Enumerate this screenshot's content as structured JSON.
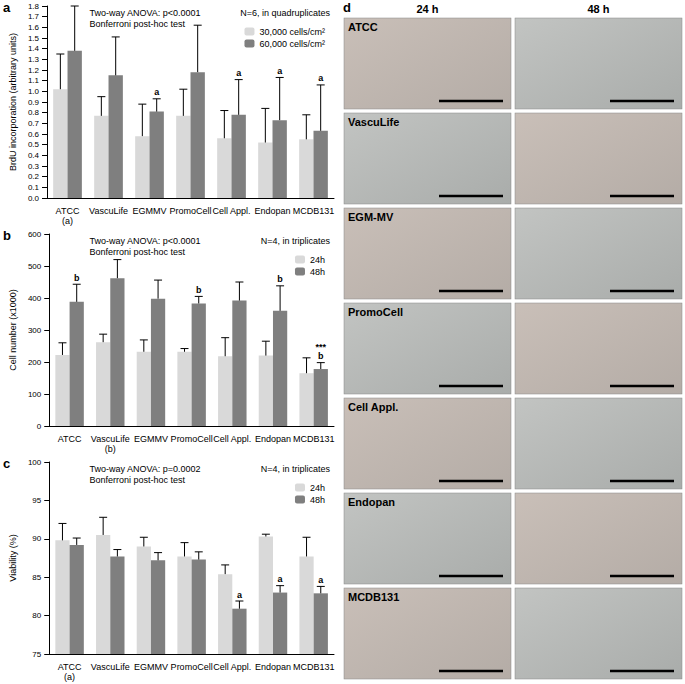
{
  "chart_data": [
    {
      "type": "bar",
      "title": "a",
      "notes": [
        "Two-way ANOVA: p<0.0001",
        "Bonferroni post-hoc test"
      ],
      "sample_note": "N=6, in quadruplicates",
      "y_label": "BrdU incorporation (arbitrary units)",
      "categories": [
        "ATCC\n(a)",
        "VascuLife",
        "EGMMV",
        "PromoCell",
        "Cell Appl.",
        "Endopan",
        "MCDB131"
      ],
      "series": [
        {
          "name": "30,000 cells/cm²",
          "color": "#d9d9d9",
          "values": [
            1.02,
            0.77,
            0.58,
            0.77,
            0.56,
            0.52,
            0.55
          ],
          "errors": [
            0.33,
            0.18,
            0.3,
            0.25,
            0.26,
            0.32,
            0.23
          ]
        },
        {
          "name": "60,000 cells/cm²",
          "color": "#7f7f7f",
          "values": [
            1.38,
            1.15,
            0.81,
            1.18,
            0.78,
            0.73,
            0.63
          ],
          "errors": [
            0.42,
            0.36,
            0.12,
            0.44,
            0.33,
            0.4,
            0.43
          ],
          "annotations": [
            null,
            null,
            "a",
            null,
            "a",
            "a",
            "a"
          ]
        }
      ],
      "ylim": [
        0,
        1.8
      ],
      "yticks": [
        {
          "value": 0,
          "label": "0.0"
        },
        0.1,
        0.2,
        0.3,
        0.4,
        0.5,
        0.6,
        0.7,
        0.8,
        0.9,
        {
          "value": 1,
          "label": "1.0"
        },
        1.1,
        1.2,
        1.3,
        1.4,
        1.5,
        1.6,
        1.7,
        1.8
      ],
      "grid": false,
      "legend": "top-right"
    },
    {
      "type": "bar",
      "title": "b",
      "notes": [
        "Two-way ANOVA: p<0.0001",
        "Bonferroni post-hoc test"
      ],
      "sample_note": "N=4, in triplicates",
      "y_label": "Cell number (x1000)",
      "categories": [
        "ATCC",
        "VascuLife\n(b)",
        "EGMMV",
        "PromoCell",
        "Cell Appl.",
        "Endopan",
        "MCDB131"
      ],
      "series": [
        {
          "name": "24h",
          "color": "#d9d9d9",
          "values": [
            222,
            262,
            232,
            232,
            218,
            220,
            165
          ],
          "errors": [
            38,
            25,
            37,
            10,
            58,
            45,
            48
          ]
        },
        {
          "name": "48h",
          "color": "#7f7f7f",
          "values": [
            388,
            462,
            398,
            383,
            392,
            360,
            178
          ],
          "errors": [
            55,
            58,
            58,
            22,
            58,
            78,
            20
          ],
          "annotations": [
            "b",
            null,
            null,
            "b",
            null,
            "b",
            "***\nb"
          ]
        }
      ],
      "ylim": [
        0,
        600
      ],
      "yticks": [
        0,
        100,
        200,
        300,
        400,
        500,
        600
      ],
      "grid": false,
      "legend": "top-right"
    },
    {
      "type": "bar",
      "title": "c",
      "notes": [
        "Two-way ANOVA: p=0.0002",
        "Bonferroni post-hoc test"
      ],
      "sample_note": "N=4, in triplicates",
      "y_label": "Viability (%)",
      "categories": [
        "ATCC\n(a)",
        "VascuLife",
        "EGMMV",
        "PromoCell",
        "Cell Appl.",
        "Endopan",
        "MCDB131"
      ],
      "series": [
        {
          "name": "24h",
          "color": "#d9d9d9",
          "values": [
            89.8,
            90.5,
            89.0,
            87.7,
            85.4,
            90.3,
            87.7
          ],
          "errors": [
            2.2,
            2.3,
            1.2,
            1.8,
            1.2,
            0.3,
            2.5
          ]
        },
        {
          "name": "48h",
          "color": "#7f7f7f",
          "values": [
            89.2,
            87.7,
            87.2,
            87.3,
            80.9,
            83.0,
            82.9
          ],
          "errors": [
            0.9,
            0.9,
            1.0,
            1.0,
            1.0,
            0.9,
            0.9
          ],
          "annotations": [
            null,
            null,
            null,
            null,
            "a",
            "a",
            "a"
          ]
        }
      ],
      "ylim": [
        75,
        100
      ],
      "yticks": [
        75,
        80,
        85,
        90,
        95,
        100
      ],
      "grid": false,
      "legend": "top-right"
    }
  ],
  "panel_d": {
    "title": "d",
    "columns": [
      "24 h",
      "48 h"
    ],
    "rows": [
      "ATCC",
      "VascuLife",
      "EGM-MV",
      "PromoCell",
      "Cell Appl.",
      "Endopan",
      "MCDB131"
    ]
  }
}
